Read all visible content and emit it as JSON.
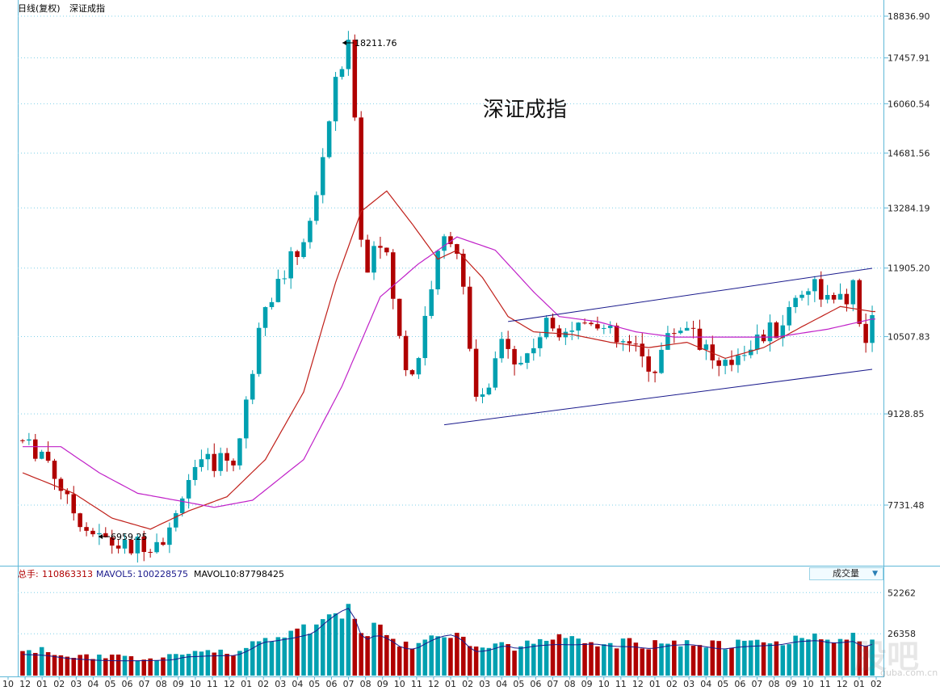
{
  "header": {
    "period_label": "日线(复权)",
    "index_name": "深证成指"
  },
  "chart_title": "深证成指",
  "price_axis": {
    "labels": [
      "18836.90",
      "17457.91",
      "16060.54",
      "14681.56",
      "13284.19",
      "11905.20",
      "10507.83",
      "9128.85",
      "7731.48"
    ]
  },
  "volume_axis": {
    "labels": [
      "52262",
      "26358"
    ]
  },
  "annotations": {
    "high": "18211.76",
    "low": "6959.25"
  },
  "volume_panel": {
    "total_label": "总手:",
    "total_value": "110863313",
    "mavol5_label": "MAVOL5:",
    "mavol5_value": "100228575",
    "mavol10_label": "MAVOL10:",
    "mavol10_value": "87798425",
    "selector_label": "成交量",
    "selector_arrow": "▼"
  },
  "x_axis": {
    "labels": [
      "10",
      "12",
      "01",
      "02",
      "03",
      "04",
      "05",
      "06",
      "07",
      "08",
      "09",
      "10",
      "11",
      "12",
      "01",
      "02",
      "03",
      "04",
      "05",
      "06",
      "07",
      "08",
      "09",
      "10",
      "11",
      "12",
      "01",
      "02",
      "03",
      "04",
      "05",
      "06",
      "07",
      "08",
      "09",
      "10",
      "11",
      "12",
      "01",
      "02",
      "03",
      "04",
      "05",
      "06",
      "07",
      "08",
      "09",
      "10",
      "11",
      "12",
      "01",
      "02"
    ]
  },
  "watermark": {
    "main": "股吧",
    "sub": "guba.com.cn"
  },
  "colors": {
    "up": "#00a0b0",
    "down": "#b00000",
    "ma_red": "#c0201a",
    "ma_magenta": "#c020c8",
    "channel": "#1a1a8c",
    "grid": "#7fd0e8",
    "axis": "#5fb8d8"
  },
  "chart_data": {
    "type": "candlestick",
    "y_scale": "log",
    "price_ylim": [
      6700,
      19000
    ],
    "price_anchor_points": [
      [
        0,
        8700
      ],
      [
        4,
        8500
      ],
      [
        8,
        7700
      ],
      [
        12,
        7300
      ],
      [
        16,
        7150
      ],
      [
        20,
        7200
      ],
      [
        24,
        7400
      ],
      [
        26,
        8100
      ],
      [
        30,
        8350
      ],
      [
        34,
        8450
      ],
      [
        36,
        9600
      ],
      [
        38,
        11200
      ],
      [
        40,
        11500
      ],
      [
        43,
        12100
      ],
      [
        46,
        13000
      ],
      [
        48,
        15200
      ],
      [
        50,
        17000
      ],
      [
        52,
        18000
      ],
      [
        53,
        14000
      ],
      [
        54,
        11500
      ],
      [
        56,
        12800
      ],
      [
        58,
        11800
      ],
      [
        60,
        10000
      ],
      [
        62,
        9800
      ],
      [
        64,
        11300
      ],
      [
        66,
        12400
      ],
      [
        68,
        12800
      ],
      [
        70,
        11000
      ],
      [
        71,
        9300
      ],
      [
        73,
        9400
      ],
      [
        76,
        10600
      ],
      [
        78,
        9900
      ],
      [
        81,
        10500
      ],
      [
        84,
        10800
      ],
      [
        87,
        10700
      ],
      [
        90,
        10900
      ],
      [
        93,
        10400
      ],
      [
        96,
        10300
      ],
      [
        99,
        9900
      ],
      [
        102,
        10600
      ],
      [
        105,
        10800
      ],
      [
        108,
        10200
      ],
      [
        110,
        9800
      ],
      [
        113,
        10300
      ],
      [
        116,
        10500
      ],
      [
        119,
        10700
      ],
      [
        122,
        11400
      ],
      [
        125,
        11600
      ],
      [
        127,
        11100
      ],
      [
        129,
        11200
      ],
      [
        131,
        11500
      ],
      [
        132,
        10000
      ],
      [
        133,
        10800
      ]
    ],
    "ma_red_anchor_points": [
      [
        0,
        8200
      ],
      [
        8,
        7900
      ],
      [
        14,
        7550
      ],
      [
        20,
        7400
      ],
      [
        26,
        7650
      ],
      [
        32,
        7850
      ],
      [
        38,
        8400
      ],
      [
        44,
        9500
      ],
      [
        49,
        11600
      ],
      [
        53,
        13200
      ],
      [
        57,
        13700
      ],
      [
        61,
        12900
      ],
      [
        65,
        12100
      ],
      [
        68,
        12300
      ],
      [
        72,
        11700
      ],
      [
        76,
        10900
      ],
      [
        80,
        10600
      ],
      [
        86,
        10550
      ],
      [
        92,
        10400
      ],
      [
        98,
        10300
      ],
      [
        104,
        10400
      ],
      [
        110,
        10100
      ],
      [
        116,
        10300
      ],
      [
        122,
        10700
      ],
      [
        128,
        11100
      ],
      [
        133,
        11000
      ]
    ],
    "ma_magenta_anchor_points": [
      [
        0,
        8600
      ],
      [
        6,
        8600
      ],
      [
        12,
        8200
      ],
      [
        18,
        7900
      ],
      [
        24,
        7800
      ],
      [
        30,
        7700
      ],
      [
        36,
        7800
      ],
      [
        44,
        8400
      ],
      [
        50,
        9600
      ],
      [
        56,
        11300
      ],
      [
        62,
        12000
      ],
      [
        68,
        12600
      ],
      [
        74,
        12300
      ],
      [
        80,
        11400
      ],
      [
        84,
        10900
      ],
      [
        90,
        10800
      ],
      [
        96,
        10600
      ],
      [
        102,
        10500
      ],
      [
        110,
        10500
      ],
      [
        118,
        10500
      ],
      [
        126,
        10650
      ],
      [
        133,
        10850
      ]
    ],
    "channel_upper": {
      "from": [
        76,
        10800
      ],
      "to": [
        133,
        11900
      ]
    },
    "channel_lower": {
      "from": [
        66,
        8950
      ],
      "to": [
        133,
        9900
      ]
    },
    "volume_ylim": [
      0,
      58000
    ]
  }
}
